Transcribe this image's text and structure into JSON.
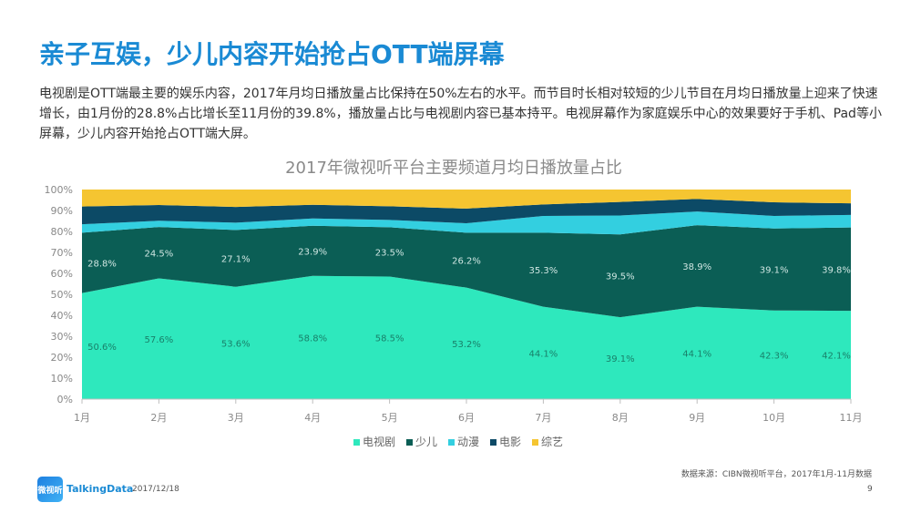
{
  "page": {
    "title": "亲子互娱，少儿内容开始抢占OTT端屏幕",
    "intro": "电视剧是OTT端最主要的娱乐内容，2017年月均日播放量占比保持在50%左右的水平。而节目时长相对较短的少儿节目在月均日播放量上迎来了快速增长，由1月份的28.8%占比增长至11月份的39.8%，播放量占比与电视剧内容已基本持平。电视屏幕作为家庭娱乐中心的效果要好于手机、Pad等小屏幕，少儿内容开始抢占OTT端大屏。",
    "source": "数据来源：CIBN微视听平台，2017年1月-11月数据",
    "logo_text": "微视听",
    "brand": "TalkingData",
    "date": "2017/12/18",
    "page_number": "9"
  },
  "chart_data": {
    "type": "area",
    "stacked": true,
    "title": "2017年微视听平台主要频道月均日播放量占比",
    "categories": [
      "1月",
      "2月",
      "3月",
      "4月",
      "5月",
      "6月",
      "7月",
      "8月",
      "9月",
      "10月",
      "11月"
    ],
    "y_ticks": [
      "0%",
      "10%",
      "20%",
      "30%",
      "40%",
      "50%",
      "60%",
      "70%",
      "80%",
      "90%",
      "100%"
    ],
    "ylim": [
      0,
      100
    ],
    "legend_position": "bottom",
    "series": [
      {
        "name": "电视剧",
        "color": "#2ee8bd",
        "label_color": "#19806a",
        "values": [
          50.6,
          57.6,
          53.6,
          58.8,
          58.5,
          53.2,
          44.1,
          39.1,
          44.1,
          42.3,
          42.1
        ],
        "labels": [
          "50.6%",
          "57.6%",
          "53.6%",
          "58.8%",
          "58.5%",
          "53.2%",
          "44.1%",
          "39.1%",
          "44.1%",
          "42.3%",
          "42.1%"
        ]
      },
      {
        "name": "少儿",
        "color": "#0b5e55",
        "label_color": "#cfe6e2",
        "values": [
          28.8,
          24.5,
          27.1,
          23.9,
          23.5,
          26.2,
          35.3,
          39.5,
          38.9,
          39.1,
          39.8
        ],
        "labels": [
          "28.8%",
          "24.5%",
          "27.1%",
          "23.9%",
          "23.5%",
          "26.2%",
          "35.3%",
          "39.5%",
          "38.9%",
          "39.1%",
          "39.8%"
        ]
      },
      {
        "name": "动漫",
        "color": "#33cfe0",
        "values": [
          4.0,
          3.0,
          3.5,
          3.5,
          3.5,
          4.5,
          8.0,
          9.0,
          6.5,
          6.0,
          6.0
        ]
      },
      {
        "name": "电影",
        "color": "#0c4a66",
        "values": [
          8.5,
          7.5,
          7.5,
          6.5,
          6.5,
          7.0,
          5.5,
          6.5,
          6.0,
          6.5,
          5.5
        ]
      },
      {
        "name": "综艺",
        "color": "#f5c531",
        "values": [
          8.1,
          7.4,
          8.3,
          7.3,
          8.0,
          9.1,
          7.1,
          5.9,
          4.5,
          6.1,
          6.6
        ]
      }
    ]
  }
}
